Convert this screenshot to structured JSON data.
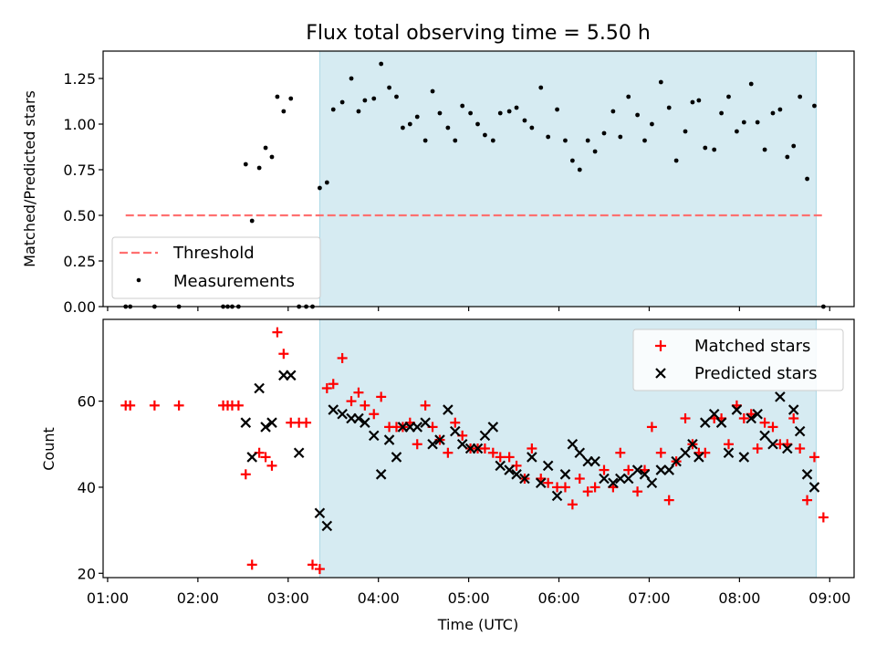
{
  "chart_data": [
    {
      "type": "scatter",
      "title": "Flux total observing time = 5.50 h",
      "xlabel": "",
      "ylabel": "Matched/Predicted stars",
      "x_unit": "hours UTC",
      "xlim": [
        0.95,
        9.27
      ],
      "ylim": [
        0,
        1.4
      ],
      "yticks": [
        0,
        0.25,
        0.5,
        0.75,
        1.0,
        1.25
      ],
      "ytick_labels": [
        "0.00",
        "0.25",
        "0.50",
        "0.75",
        "1.00",
        "1.25"
      ],
      "shaded_span": [
        3.35,
        8.85
      ],
      "threshold": {
        "name": "Threshold",
        "y": 0.5,
        "x_range": [
          1.2,
          8.93
        ],
        "color": "#ff7070"
      },
      "legend": {
        "position": "lower-left",
        "entries": [
          "Threshold",
          "Measurements"
        ]
      },
      "series": [
        {
          "name": "Measurements",
          "color": "#000000",
          "x": [
            1.2,
            1.25,
            1.52,
            1.79,
            2.28,
            2.33,
            2.38,
            2.45,
            2.53,
            2.6,
            2.68,
            2.75,
            2.82,
            2.88,
            2.95,
            3.03,
            3.12,
            3.2,
            3.27,
            3.35,
            3.43,
            3.5,
            3.6,
            3.7,
            3.78,
            3.85,
            3.95,
            4.03,
            4.12,
            4.2,
            4.27,
            4.35,
            4.43,
            4.52,
            4.6,
            4.68,
            4.77,
            4.85,
            4.93,
            5.02,
            5.1,
            5.18,
            5.27,
            5.35,
            5.45,
            5.53,
            5.62,
            5.7,
            5.8,
            5.88,
            5.98,
            6.07,
            6.15,
            6.23,
            6.32,
            6.4,
            6.5,
            6.6,
            6.68,
            6.77,
            6.87,
            6.95,
            7.03,
            7.13,
            7.22,
            7.3,
            7.4,
            7.48,
            7.55,
            7.62,
            7.72,
            7.8,
            7.88,
            7.97,
            8.05,
            8.13,
            8.2,
            8.28,
            8.37,
            8.45,
            8.53,
            8.6,
            8.67,
            8.75,
            8.83,
            8.93
          ],
          "y": [
            0.0,
            0.0,
            0.0,
            0.0,
            0.0,
            0.0,
            0.0,
            0.0,
            0.78,
            0.47,
            0.76,
            0.87,
            0.82,
            1.15,
            1.07,
            1.14,
            0.0,
            0.0,
            0.0,
            0.65,
            0.68,
            1.08,
            1.12,
            1.25,
            1.07,
            1.13,
            1.14,
            1.33,
            1.2,
            1.15,
            0.98,
            1.0,
            1.04,
            0.91,
            1.18,
            1.06,
            0.98,
            0.91,
            1.1,
            1.06,
            1.0,
            0.94,
            0.91,
            1.06,
            1.07,
            1.09,
            1.02,
            0.98,
            1.2,
            0.93,
            1.08,
            0.91,
            0.8,
            0.75,
            0.91,
            0.85,
            0.95,
            1.07,
            0.93,
            1.15,
            1.05,
            0.91,
            1.0,
            1.23,
            1.09,
            0.8,
            0.96,
            1.12,
            1.13,
            0.87,
            0.86,
            1.06,
            1.15,
            0.96,
            1.01,
            1.22,
            1.01,
            0.86,
            1.06,
            1.08,
            0.82,
            0.88,
            1.15,
            0.7,
            1.1,
            0.0
          ]
        }
      ]
    },
    {
      "type": "scatter",
      "title": "",
      "xlabel": "Time (UTC)",
      "ylabel": "Count",
      "x_unit": "hours UTC",
      "xlim": [
        0.95,
        9.27
      ],
      "ylim": [
        19,
        79
      ],
      "yticks": [
        20,
        40,
        60
      ],
      "ytick_labels": [
        "20",
        "40",
        "60"
      ],
      "xticks": [
        1,
        2,
        3,
        4,
        5,
        6,
        7,
        8,
        9
      ],
      "xtick_labels": [
        "01:00",
        "02:00",
        "03:00",
        "04:00",
        "05:00",
        "06:00",
        "07:00",
        "08:00",
        "09:00"
      ],
      "shaded_span": [
        3.35,
        8.85
      ],
      "legend": {
        "position": "upper-right",
        "entries": [
          "Matched stars",
          "Predicted stars"
        ]
      },
      "series": [
        {
          "name": "Matched stars",
          "color": "#ff0000",
          "x": [
            1.2,
            1.25,
            1.52,
            1.79,
            2.28,
            2.33,
            2.38,
            2.45,
            2.53,
            2.6,
            2.68,
            2.75,
            2.82,
            2.88,
            2.95,
            3.03,
            3.12,
            3.2,
            3.27,
            3.35,
            3.43,
            3.5,
            3.6,
            3.7,
            3.78,
            3.85,
            3.95,
            4.03,
            4.12,
            4.2,
            4.27,
            4.35,
            4.43,
            4.52,
            4.6,
            4.68,
            4.77,
            4.85,
            4.93,
            5.02,
            5.1,
            5.18,
            5.27,
            5.35,
            5.45,
            5.53,
            5.62,
            5.7,
            5.8,
            5.88,
            5.98,
            6.07,
            6.15,
            6.23,
            6.32,
            6.4,
            6.5,
            6.6,
            6.68,
            6.77,
            6.87,
            6.95,
            7.03,
            7.13,
            7.22,
            7.3,
            7.4,
            7.48,
            7.55,
            7.62,
            7.72,
            7.8,
            7.88,
            7.97,
            8.05,
            8.13,
            8.2,
            8.28,
            8.37,
            8.45,
            8.53,
            8.6,
            8.67,
            8.75,
            8.83,
            8.93
          ],
          "y": [
            59,
            59,
            59,
            59,
            59,
            59,
            59,
            59,
            43,
            22,
            48,
            47,
            45,
            76,
            71,
            55,
            55,
            55,
            22,
            21,
            63,
            64,
            70,
            60,
            62,
            59,
            57,
            61,
            54,
            54,
            54,
            55,
            50,
            59,
            54,
            51,
            48,
            55,
            52,
            49,
            49,
            49,
            48,
            47,
            47,
            45,
            42,
            49,
            42,
            41,
            40,
            40,
            36,
            42,
            39,
            40,
            44,
            40,
            48,
            44,
            39,
            44,
            54,
            48,
            37,
            46,
            56,
            50,
            48,
            48,
            56,
            56,
            50,
            59,
            56,
            57,
            49,
            55,
            54,
            50,
            50,
            56,
            49,
            37,
            47,
            33
          ]
        },
        {
          "name": "Predicted stars",
          "color": "#000000",
          "x": [
            2.53,
            2.6,
            2.68,
            2.75,
            2.82,
            2.95,
            3.03,
            3.12,
            3.35,
            3.43,
            3.5,
            3.6,
            3.7,
            3.78,
            3.85,
            3.95,
            4.03,
            4.12,
            4.2,
            4.27,
            4.35,
            4.43,
            4.52,
            4.6,
            4.68,
            4.77,
            4.85,
            4.93,
            5.02,
            5.1,
            5.18,
            5.27,
            5.35,
            5.45,
            5.53,
            5.62,
            5.7,
            5.8,
            5.88,
            5.98,
            6.07,
            6.15,
            6.23,
            6.32,
            6.4,
            6.5,
            6.6,
            6.68,
            6.77,
            6.87,
            6.95,
            7.03,
            7.13,
            7.22,
            7.3,
            7.4,
            7.48,
            7.55,
            7.62,
            7.72,
            7.8,
            7.88,
            7.97,
            8.05,
            8.13,
            8.2,
            8.28,
            8.37,
            8.45,
            8.53,
            8.6,
            8.67,
            8.75,
            8.83
          ],
          "y": [
            55,
            47,
            63,
            54,
            55,
            66,
            66,
            48,
            34,
            31,
            58,
            57,
            56,
            56,
            55,
            52,
            43,
            51,
            47,
            54,
            54,
            54,
            55,
            50,
            51,
            58,
            53,
            50,
            49,
            49,
            52,
            54,
            45,
            44,
            43,
            42,
            47,
            41,
            45,
            38,
            43,
            50,
            48,
            46,
            46,
            42,
            41,
            42,
            42,
            44,
            43,
            41,
            44,
            44,
            46,
            48,
            50,
            47,
            55,
            57,
            55,
            48,
            58,
            47,
            56,
            57,
            52,
            50,
            61,
            49,
            58,
            53,
            43,
            40
          ]
        }
      ]
    }
  ]
}
